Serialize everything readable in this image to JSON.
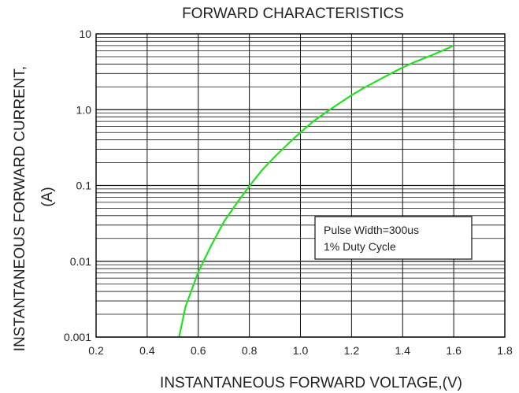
{
  "chart_data": {
    "type": "line",
    "title": "FORWARD CHARACTERISTICS",
    "xlabel": "INSTANTANEOUS FORWARD VOLTAGE,(V)",
    "ylabel_line1": "INSTANTANEOUS FORWARD CURRENT,",
    "ylabel_line2": "(A)",
    "xlim": [
      0.2,
      1.8
    ],
    "ylim": [
      0.001,
      10
    ],
    "yscale": "log",
    "grid": true,
    "x_ticks": [
      "0.2",
      "0.4",
      "0.6",
      "0.8",
      "1.0",
      "1.2",
      "1.4",
      "1.6",
      "1.8"
    ],
    "y_ticks": [
      "0.001",
      "0.01",
      "0.1",
      "1.0",
      "10"
    ],
    "annotation": [
      "Pulse Width=300us",
      "1% Duty Cycle"
    ],
    "series": [
      {
        "color": "#22e022",
        "x": [
          0.525,
          0.55,
          0.6,
          0.65,
          0.7,
          0.75,
          0.8,
          0.85,
          0.9,
          0.95,
          1.0,
          1.05,
          1.1,
          1.15,
          1.2,
          1.25,
          1.3,
          1.35,
          1.4,
          1.45,
          1.5,
          1.55,
          1.6
        ],
        "y": [
          0.001,
          0.0025,
          0.0072,
          0.016,
          0.033,
          0.058,
          0.098,
          0.16,
          0.24,
          0.35,
          0.5,
          0.7,
          0.92,
          1.2,
          1.55,
          1.95,
          2.4,
          2.95,
          3.6,
          4.3,
          5.0,
          5.9,
          7.0
        ]
      }
    ]
  }
}
